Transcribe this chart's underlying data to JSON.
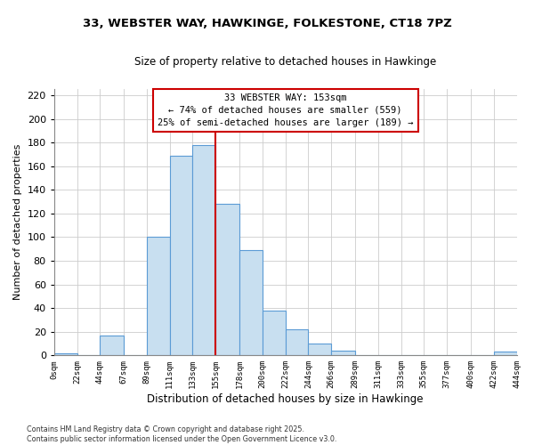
{
  "title": "33, WEBSTER WAY, HAWKINGE, FOLKESTONE, CT18 7PZ",
  "subtitle": "Size of property relative to detached houses in Hawkinge",
  "xlabel": "Distribution of detached houses by size in Hawkinge",
  "ylabel": "Number of detached properties",
  "bar_color": "#c8dff0",
  "bar_edge_color": "#5b9bd5",
  "bin_edges": [
    0,
    22,
    44,
    67,
    89,
    111,
    133,
    155,
    178,
    200,
    222,
    244,
    266,
    289,
    311,
    333,
    355,
    377,
    400,
    422,
    444
  ],
  "bin_labels": [
    "0sqm",
    "22sqm",
    "44sqm",
    "67sqm",
    "89sqm",
    "111sqm",
    "133sqm",
    "155sqm",
    "178sqm",
    "200sqm",
    "222sqm",
    "244sqm",
    "266sqm",
    "289sqm",
    "311sqm",
    "333sqm",
    "355sqm",
    "377sqm",
    "400sqm",
    "422sqm",
    "444sqm"
  ],
  "bar_heights": [
    2,
    0,
    17,
    0,
    100,
    169,
    178,
    128,
    89,
    38,
    22,
    10,
    4,
    0,
    0,
    0,
    0,
    0,
    0,
    3
  ],
  "property_line_x": 155,
  "property_line_color": "#cc0000",
  "ylim": [
    0,
    225
  ],
  "yticks": [
    0,
    20,
    40,
    60,
    80,
    100,
    120,
    140,
    160,
    180,
    200,
    220
  ],
  "annotation_box_text": "33 WEBSTER WAY: 153sqm\n← 74% of detached houses are smaller (559)\n25% of semi-detached houses are larger (189) →",
  "footer_line1": "Contains HM Land Registry data © Crown copyright and database right 2025.",
  "footer_line2": "Contains public sector information licensed under the Open Government Licence v3.0.",
  "background_color": "#ffffff",
  "grid_color": "#cccccc"
}
